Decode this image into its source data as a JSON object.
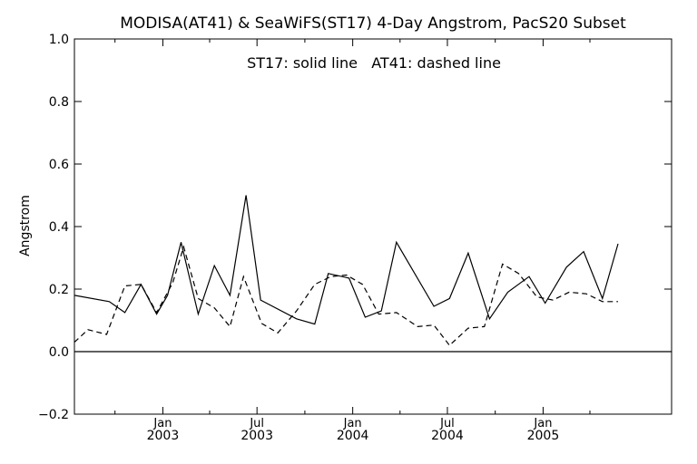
{
  "chart_data": {
    "type": "line",
    "title": "MODISA(AT41) & SeaWiFS(ST17) 4-Day Angstrom, PacS20 Subset",
    "annotation": "ST17: solid line   AT41: dashed line",
    "xlabel": "",
    "ylabel": "Angstrom",
    "ylim": [
      -0.2,
      1.0
    ],
    "yticks": [
      "−0.2",
      "0.0",
      "0.2",
      "0.4",
      "0.6",
      "0.8",
      "1.0"
    ],
    "ytick_values": [
      -0.2,
      0.0,
      0.2,
      0.4,
      0.6,
      0.8,
      1.0
    ],
    "xlim": [
      "2002-07-15",
      "2005-09-05"
    ],
    "xticks": [
      {
        "month": "Jan",
        "year": "2003",
        "date": "2003-01-01"
      },
      {
        "month": "Jul",
        "year": "2003",
        "date": "2003-07-01"
      },
      {
        "month": "Jan",
        "year": "2004",
        "date": "2004-01-01"
      },
      {
        "month": "Jul",
        "year": "2004",
        "date": "2004-07-01"
      },
      {
        "month": "Jan",
        "year": "2005",
        "date": "2005-01-01"
      }
    ],
    "reference_line": 0.0,
    "grid": false,
    "series": [
      {
        "name": "ST17",
        "style": "solid",
        "color": "#000000",
        "points": [
          [
            "2002-07-15",
            0.18
          ],
          [
            "2002-09-20",
            0.16
          ],
          [
            "2002-10-20",
            0.125
          ],
          [
            "2002-11-20",
            0.215
          ],
          [
            "2002-12-20",
            0.12
          ],
          [
            "2003-01-10",
            0.18
          ],
          [
            "2003-02-05",
            0.35
          ],
          [
            "2003-03-10",
            0.12
          ],
          [
            "2003-04-10",
            0.275
          ],
          [
            "2003-05-10",
            0.18
          ],
          [
            "2003-06-10",
            0.5
          ],
          [
            "2003-07-08",
            0.165
          ],
          [
            "2003-09-15",
            0.105
          ],
          [
            "2003-10-20",
            0.088
          ],
          [
            "2003-11-15",
            0.25
          ],
          [
            "2003-12-25",
            0.235
          ],
          [
            "2004-01-25",
            0.11
          ],
          [
            "2004-02-25",
            0.13
          ],
          [
            "2004-03-25",
            0.35
          ],
          [
            "2004-06-05",
            0.145
          ],
          [
            "2004-07-05",
            0.17
          ],
          [
            "2004-08-10",
            0.315
          ],
          [
            "2004-09-20",
            0.105
          ],
          [
            "2004-10-25",
            0.19
          ],
          [
            "2004-12-05",
            0.24
          ],
          [
            "2005-01-05",
            0.155
          ],
          [
            "2005-02-15",
            0.27
          ],
          [
            "2005-03-20",
            0.32
          ],
          [
            "2005-04-25",
            0.17
          ],
          [
            "2005-05-25",
            0.345
          ]
        ]
      },
      {
        "name": "AT41",
        "style": "dashed",
        "color": "#000000",
        "points": [
          [
            "2002-07-15",
            0.03
          ],
          [
            "2002-08-10",
            0.07
          ],
          [
            "2002-09-15",
            0.055
          ],
          [
            "2002-10-20",
            0.21
          ],
          [
            "2002-11-20",
            0.215
          ],
          [
            "2002-12-20",
            0.125
          ],
          [
            "2003-01-20",
            0.22
          ],
          [
            "2003-02-10",
            0.335
          ],
          [
            "2003-03-10",
            0.17
          ],
          [
            "2003-04-10",
            0.14
          ],
          [
            "2003-05-10",
            0.08
          ],
          [
            "2003-06-05",
            0.24
          ],
          [
            "2003-07-10",
            0.09
          ],
          [
            "2003-08-10",
            0.06
          ],
          [
            "2003-09-15",
            0.13
          ],
          [
            "2003-10-20",
            0.215
          ],
          [
            "2003-11-20",
            0.24
          ],
          [
            "2003-12-20",
            0.245
          ],
          [
            "2004-01-20",
            0.215
          ],
          [
            "2004-02-20",
            0.12
          ],
          [
            "2004-03-25",
            0.125
          ],
          [
            "2004-05-05",
            0.08
          ],
          [
            "2004-06-05",
            0.085
          ],
          [
            "2004-07-05",
            0.02
          ],
          [
            "2004-08-10",
            0.075
          ],
          [
            "2004-09-10",
            0.08
          ],
          [
            "2004-10-15",
            0.28
          ],
          [
            "2004-11-15",
            0.25
          ],
          [
            "2004-12-20",
            0.175
          ],
          [
            "2005-01-20",
            0.165
          ],
          [
            "2005-02-20",
            0.19
          ],
          [
            "2005-03-25",
            0.185
          ],
          [
            "2005-04-25",
            0.16
          ],
          [
            "2005-05-25",
            0.16
          ]
        ]
      }
    ]
  }
}
